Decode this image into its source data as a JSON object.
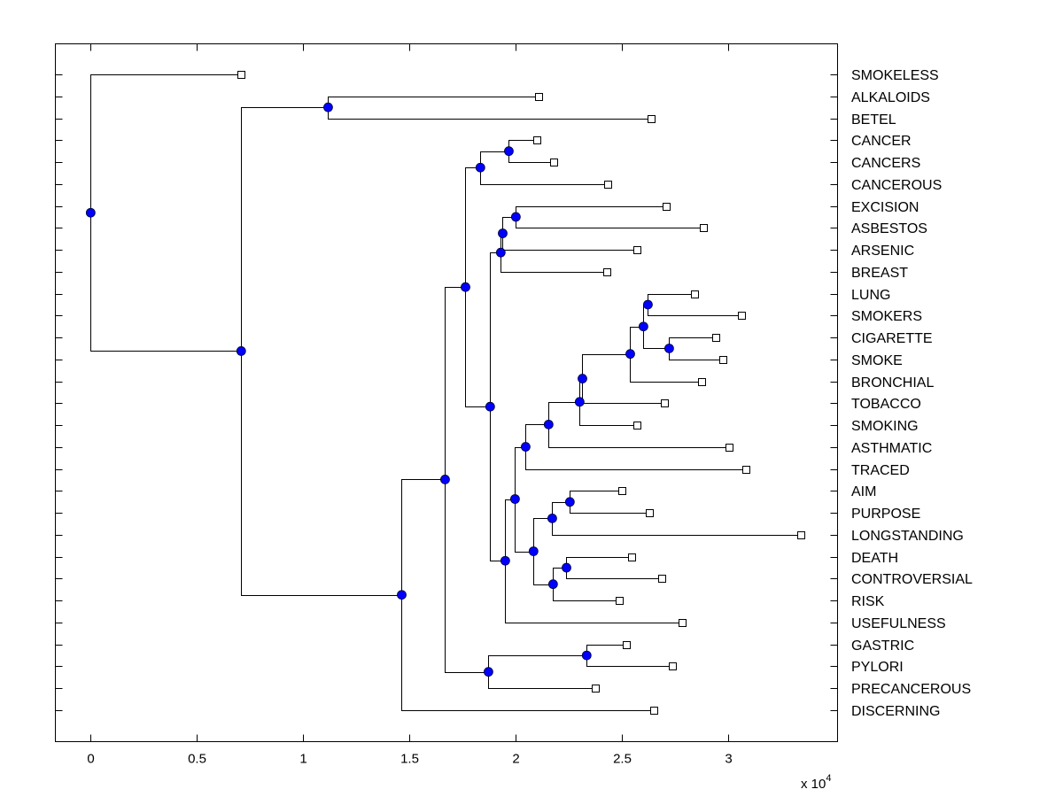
{
  "chart_data": {
    "type": "dendrogram",
    "title": "",
    "xlabel": "",
    "ylabel": "",
    "x_multiplier_label": "x 10",
    "x_multiplier_exponent": "4",
    "xlim": [
      -0.166,
      3.513
    ],
    "xticks": [
      0,
      0.5,
      1,
      1.5,
      2,
      2.5,
      3
    ],
    "xtick_labels": [
      "0",
      "0.5",
      "1",
      "1.5",
      "2",
      "2.5",
      "3"
    ],
    "grid": false,
    "colors": {
      "internal_node": "#0000ff",
      "leaf_marker_fill": "#ffffff",
      "line": "#000000"
    },
    "leaves": [
      "SMOKELESS",
      "ALKALOIDS",
      "BETEL",
      "CANCER",
      "CANCERS",
      "CANCEROUS",
      "EXCISION",
      "ASBESTOS",
      "ARSENIC",
      "BREAST",
      "LUNG",
      "SMOKERS",
      "CIGARETTE",
      "SMOKE",
      "BRONCHIAL",
      "TOBACCO",
      "SMOKING",
      "ASTHMATIC",
      "TRACED",
      "AIM",
      "PURPOSE",
      "LONGSTANDING",
      "DEATH",
      "CONTROVERSIAL",
      "RISK",
      "USEFULNESS",
      "GASTRIC",
      "PYLORI",
      "PRECANCEROUS",
      "DISCERNING"
    ],
    "leaf_values": {
      "SMOKELESS": 0.708,
      "ALKALOIDS": 2.108,
      "BETEL": 2.638,
      "CANCER": 2.1,
      "CANCERS": 2.179,
      "CANCEROUS": 2.433,
      "EXCISION": 2.708,
      "ASBESTOS": 2.883,
      "ARSENIC": 2.571,
      "BREAST": 2.429,
      "LUNG": 2.842,
      "SMOKERS": 3.063,
      "CIGARETTE": 2.942,
      "SMOKE": 2.975,
      "BRONCHIAL": 2.875,
      "TOBACCO": 2.7,
      "SMOKING": 2.571,
      "ASTHMATIC": 3.004,
      "TRACED": 3.083,
      "AIM": 2.5,
      "PURPOSE": 2.629,
      "LONGSTANDING": 3.342,
      "DEATH": 2.546,
      "CONTROVERSIAL": 2.688,
      "RISK": 2.488,
      "USEFULNESS": 2.783,
      "GASTRIC": 2.521,
      "PYLORI": 2.738,
      "PRECANCEROUS": 2.375,
      "DISCERNING": 2.65
    },
    "nodes": [
      {
        "id": "root",
        "value": 0.0,
        "children": [
          "SMOKELESS",
          "A"
        ]
      },
      {
        "id": "A",
        "value": 0.708,
        "children": [
          "B",
          "C"
        ]
      },
      {
        "id": "B",
        "value": 1.117,
        "children": [
          "ALKALOIDS",
          "BETEL"
        ]
      },
      {
        "id": "C",
        "value": 1.463,
        "children": [
          "D",
          "DISCERNING"
        ]
      },
      {
        "id": "D",
        "value": 1.667,
        "children": [
          "E",
          "F"
        ]
      },
      {
        "id": "F",
        "value": 1.871,
        "children": [
          "G",
          "PRECANCEROUS"
        ]
      },
      {
        "id": "G",
        "value": 2.333,
        "children": [
          "GASTRIC",
          "PYLORI"
        ]
      },
      {
        "id": "E",
        "value": 1.763,
        "children": [
          "H",
          "I"
        ]
      },
      {
        "id": "H",
        "value": 1.833,
        "children": [
          "J",
          "CANCEROUS"
        ]
      },
      {
        "id": "J",
        "value": 1.967,
        "children": [
          "CANCER",
          "CANCERS"
        ]
      },
      {
        "id": "I",
        "value": 1.879,
        "children": [
          "K",
          "L"
        ]
      },
      {
        "id": "K",
        "value": 1.929,
        "children": [
          "M",
          "BREAST"
        ]
      },
      {
        "id": "M",
        "value": 1.938,
        "children": [
          "N",
          "ARSENIC"
        ]
      },
      {
        "id": "N",
        "value": 2.0,
        "children": [
          "EXCISION",
          "ASBESTOS"
        ]
      },
      {
        "id": "L",
        "value": 1.95,
        "children": [
          "O",
          "USEFULNESS"
        ]
      },
      {
        "id": "O",
        "value": 1.996,
        "children": [
          "P",
          "Q"
        ]
      },
      {
        "id": "P",
        "value": 2.046,
        "children": [
          "R",
          "TRACED"
        ]
      },
      {
        "id": "R",
        "value": 2.154,
        "children": [
          "V",
          "ASTHMATIC"
        ]
      },
      {
        "id": "V",
        "value": 2.3,
        "children": [
          "S",
          "SMOKING"
        ]
      },
      {
        "id": "S",
        "value": 2.313,
        "children": [
          "U",
          "TOBACCO"
        ]
      },
      {
        "id": "U",
        "value": 2.538,
        "children": [
          "W",
          "BRONCHIAL"
        ]
      },
      {
        "id": "W",
        "value": 2.6,
        "children": [
          "X",
          "Y"
        ]
      },
      {
        "id": "X",
        "value": 2.621,
        "children": [
          "LUNG",
          "SMOKERS"
        ]
      },
      {
        "id": "Y",
        "value": 2.721,
        "children": [
          "CIGARETTE",
          "SMOKE"
        ]
      },
      {
        "id": "Q",
        "value": 2.083,
        "children": [
          "Z",
          "AA"
        ]
      },
      {
        "id": "Z",
        "value": 2.171,
        "children": [
          "AB",
          "LONGSTANDING"
        ]
      },
      {
        "id": "AB",
        "value": 2.254,
        "children": [
          "AIM",
          "PURPOSE"
        ]
      },
      {
        "id": "AA",
        "value": 2.175,
        "children": [
          "AC",
          "RISK"
        ]
      },
      {
        "id": "AC",
        "value": 2.238,
        "children": [
          "DEATH",
          "CONTROVERSIAL"
        ]
      }
    ]
  }
}
